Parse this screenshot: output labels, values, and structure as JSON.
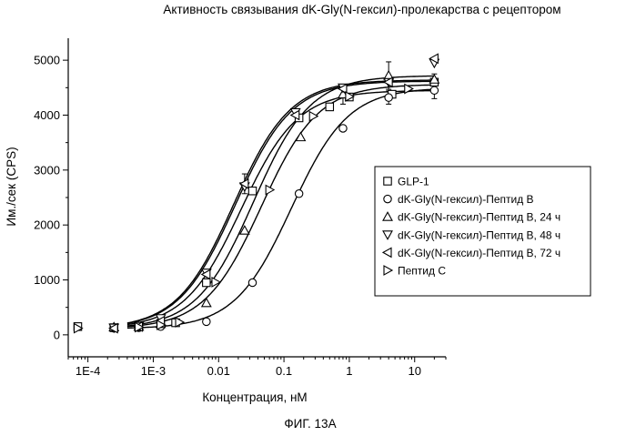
{
  "figure_label": "ФИГ. 13А",
  "chart_data": {
    "type": "scatter",
    "title": "Активность связывания dK-Gly(N-гексил)-пролекарства с рецептором",
    "xlabel": "Концентрация, нМ",
    "ylabel": "Им./сек (CPS)",
    "x_scale": "log",
    "xlim": [
      5e-05,
      30
    ],
    "ylim": [
      -400,
      5400
    ],
    "x_ticks": [
      {
        "value": 0.0001,
        "label": "1E-4"
      },
      {
        "value": 0.001,
        "label": "1E-3"
      },
      {
        "value": 0.01,
        "label": "0.01"
      },
      {
        "value": 0.1,
        "label": "0.1"
      },
      {
        "value": 1,
        "label": "1"
      },
      {
        "value": 10,
        "label": "10"
      }
    ],
    "y_ticks": [
      0,
      1000,
      2000,
      3000,
      4000,
      5000
    ],
    "grid": false,
    "legend_position": "right",
    "series": [
      {
        "name": "GLP-1",
        "marker": "square",
        "x": [
          7e-05,
          0.00025,
          0.0006,
          0.0013,
          0.0022,
          0.0065,
          0.033,
          0.17,
          0.5,
          1.0,
          4.5,
          20
        ],
        "y": [
          150,
          130,
          160,
          210,
          220,
          950,
          2620,
          3950,
          4150,
          4330,
          4380,
          4600
        ],
        "fit": {
          "bottom": 110,
          "top": 4450,
          "ec50": 0.022,
          "hill": 1.0
        }
      },
      {
        "name": "dK-Gly(N-гексил)-Пептид В",
        "marker": "circle",
        "x": [
          0.00025,
          0.0006,
          0.0013,
          0.0065,
          0.033,
          0.17,
          0.8,
          4.0,
          20
        ],
        "y": [
          120,
          130,
          150,
          240,
          950,
          2570,
          3760,
          4320,
          4450
        ],
        "fit": {
          "bottom": 110,
          "top": 4500,
          "ec50": 0.13,
          "hill": 1.0
        }
      },
      {
        "name": "dK-Gly(N-гексил)-Пептид В, 24 ч",
        "marker": "triangle-up",
        "x": [
          0.00025,
          0.0006,
          0.0013,
          0.0065,
          0.025,
          0.18,
          0.8,
          4.0,
          20
        ],
        "y": [
          140,
          150,
          200,
          580,
          1900,
          3600,
          4380,
          4720,
          4650
        ],
        "fit": {
          "bottom": 110,
          "top": 4720,
          "ec50": 0.034,
          "hill": 1.0
        }
      },
      {
        "name": "dK-Gly(N-гексил)-Пептид В, 48 ч",
        "marker": "triangle-down",
        "x": [
          0.00025,
          0.0006,
          0.0013,
          0.0065,
          0.025,
          0.15,
          0.8,
          4.0,
          20
        ],
        "y": [
          130,
          160,
          300,
          1130,
          2700,
          4050,
          4500,
          4600,
          4950
        ],
        "fit": {
          "bottom": 110,
          "top": 4640,
          "ec50": 0.017,
          "hill": 1.0
        }
      },
      {
        "name": "dK-Gly(N-гексил)-Пептид В, 72 ч",
        "marker": "triangle-left",
        "x": [
          0.00025,
          0.0006,
          0.0013,
          0.0065,
          0.025,
          0.15,
          0.8,
          4.0,
          20
        ],
        "y": [
          120,
          150,
          250,
          1100,
          2750,
          4000,
          4480,
          4600,
          5030
        ],
        "fit": {
          "bottom": 110,
          "top": 4620,
          "ec50": 0.018,
          "hill": 1.0
        }
      },
      {
        "name": "Пептид С",
        "marker": "triangle-right",
        "x": [
          7e-05,
          0.0006,
          0.0013,
          0.0025,
          0.009,
          0.06,
          0.28,
          1.0,
          8.0
        ],
        "y": [
          120,
          140,
          180,
          230,
          960,
          2640,
          3980,
          4340,
          4480
        ],
        "fit": {
          "bottom": 110,
          "top": 4560,
          "ec50": 0.045,
          "hill": 1.0
        }
      }
    ],
    "error_bars": [
      {
        "x": 4.0,
        "y": 4720,
        "err": 250
      },
      {
        "x": 4.0,
        "y": 4320,
        "err": 120
      },
      {
        "x": 0.8,
        "y": 4380,
        "err": 180
      },
      {
        "x": 0.025,
        "y": 2750,
        "err": 180
      },
      {
        "x": 20,
        "y": 4450,
        "err": 150
      },
      {
        "x": 20,
        "y": 4650,
        "err": 100
      }
    ]
  }
}
